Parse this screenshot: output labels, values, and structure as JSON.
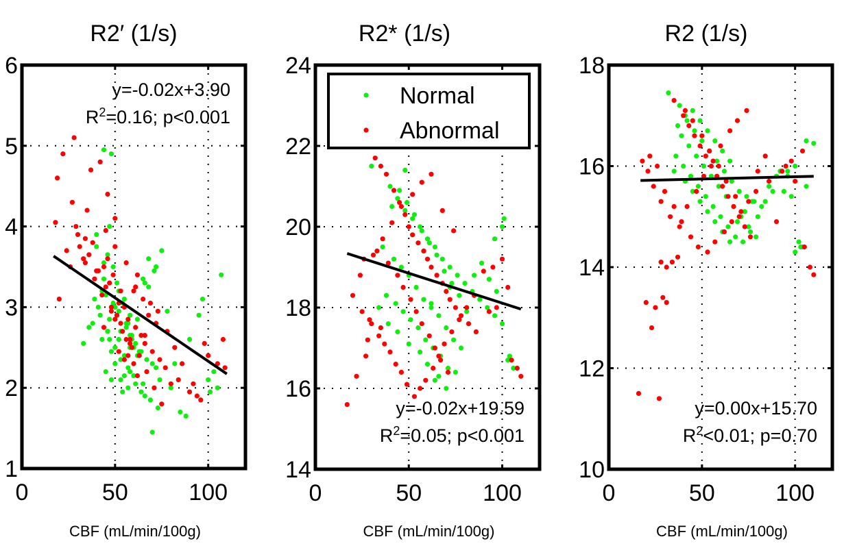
{
  "figure": {
    "colors": {
      "normal": "#10ee10",
      "abnormal": "#ff0000",
      "fit": "#000000",
      "axes": "#000000",
      "grid": "#000000"
    }
  },
  "chart_data": [
    {
      "type": "scatter",
      "title": "R2′ (1/s)",
      "xlabel": "CBF (mL/min/100g)",
      "ylabel": "",
      "xlim": [
        0,
        120
      ],
      "ylim": [
        1,
        6
      ],
      "xticks": [
        0,
        50,
        100
      ],
      "xtick_labels": [
        "0",
        "50",
        "100"
      ],
      "yticks": [
        1,
        2,
        3,
        4,
        5,
        6
      ],
      "ytick_labels": [
        "1",
        "2",
        "3",
        "4",
        "5",
        "6"
      ],
      "grid": true,
      "legend": null,
      "annotations": {
        "equation": "y=-0.02x+3.90",
        "r2_label": "R",
        "r2_sup": "2",
        "r2_rest": "=0.16; p<0.001",
        "placement": "top-right"
      },
      "fit": {
        "slope": -0.0157,
        "intercept": 3.9,
        "x_range": [
          17,
          110
        ]
      },
      "series": [
        {
          "name": "Normal",
          "x": [
            44,
            48,
            47,
            40,
            52,
            55,
            58,
            46,
            43,
            60,
            62,
            50,
            45,
            53,
            57,
            64,
            66,
            70,
            49,
            51,
            41,
            38,
            56,
            59,
            61,
            63,
            67,
            72,
            74,
            47,
            52,
            54,
            58,
            42,
            45,
            50,
            55,
            68,
            75,
            80,
            85,
            90,
            95,
            100,
            103,
            107,
            33,
            36,
            39,
            44,
            48,
            53,
            57,
            60,
            65,
            69,
            73,
            78,
            82,
            88,
            97,
            101,
            105,
            46,
            52,
            58,
            63,
            70,
            43,
            50,
            56,
            62,
            68,
            47,
            53,
            59,
            65,
            71,
            44,
            49,
            55,
            61,
            40,
            46,
            51,
            57,
            64,
            72,
            66,
            58,
            48,
            54
          ],
          "y": [
            4.95,
            4.9,
            4.0,
            3.9,
            3.2,
            3.1,
            2.9,
            2.7,
            2.6,
            2.5,
            2.4,
            2.3,
            2.2,
            2.1,
            2.0,
            1.95,
            1.9,
            1.45,
            3.5,
            3.3,
            3.0,
            2.8,
            2.75,
            2.6,
            2.55,
            2.45,
            2.35,
            2.25,
            2.1,
            2.85,
            2.95,
            3.05,
            2.65,
            2.9,
            3.15,
            2.5,
            2.4,
            3.6,
            3.7,
            2.0,
            1.7,
            2.6,
            2.9,
            2.1,
            2.2,
            3.4,
            2.55,
            2.75,
            3.1,
            3.35,
            2.45,
            2.35,
            2.25,
            2.15,
            2.05,
            1.85,
            1.75,
            2.95,
            2.3,
            1.65,
            3.1,
            1.95,
            2.0,
            2.7,
            2.6,
            2.5,
            2.4,
            2.3,
            3.2,
            3.0,
            2.8,
            2.85,
            3.25,
            2.6,
            2.7,
            2.65,
            3.35,
            3.45,
            3.55,
            3.05,
            2.15,
            2.05,
            3.75,
            3.65,
            2.9,
            2.8,
            2.45,
            3.5,
            3.3,
            2.2,
            2.1,
            1.95
          ]
        },
        {
          "name": "Abnormal",
          "x": [
            28,
            22,
            37,
            42,
            46,
            50,
            18,
            24,
            33,
            38,
            44,
            47,
            55,
            60,
            62,
            65,
            68,
            72,
            78,
            82,
            86,
            92,
            96,
            100,
            108,
            20,
            26,
            30,
            35,
            40,
            45,
            52,
            57,
            61,
            64,
            66,
            70,
            74,
            77,
            84,
            90,
            98,
            105,
            109,
            19,
            27,
            31,
            34,
            39,
            43,
            48,
            53,
            58,
            63,
            67,
            71,
            75,
            48,
            51,
            54,
            56,
            59,
            46,
            49,
            53,
            57,
            60,
            44,
            50,
            55,
            62,
            36,
            41,
            52,
            58,
            66,
            29,
            34,
            45,
            50,
            56,
            61,
            69,
            73,
            80,
            94
          ],
          "y": [
            5.1,
            4.9,
            4.7,
            4.8,
            4.4,
            4.1,
            4.05,
            3.7,
            3.6,
            3.8,
            3.5,
            3.3,
            3.0,
            3.2,
            3.4,
            3.1,
            2.9,
            2.8,
            2.7,
            2.5,
            2.3,
            2.05,
            1.85,
            2.4,
            2.6,
            3.1,
            3.5,
            3.9,
            4.2,
            3.45,
            3.25,
            3.05,
            2.85,
            2.75,
            2.65,
            2.55,
            2.45,
            2.35,
            2.25,
            2.1,
            1.95,
            2.55,
            2.3,
            2.25,
            4.6,
            4.3,
            3.75,
            3.55,
            3.35,
            3.15,
            2.95,
            2.8,
            2.6,
            2.4,
            2.2,
            2.0,
            1.8,
            3.0,
            2.9,
            2.7,
            2.6,
            2.5,
            3.6,
            3.4,
            3.2,
            2.4,
            2.3,
            2.75,
            2.85,
            2.35,
            2.15,
            3.65,
            3.45,
            2.45,
            2.55,
            2.65,
            4.0,
            3.85,
            3.95,
            3.75,
            3.55,
            3.25,
            3.05,
            2.95,
            2.05,
            1.9
          ]
        }
      ]
    },
    {
      "type": "scatter",
      "title": "R2* (1/s)",
      "xlabel": "CBF (mL/min/100g)",
      "ylabel": "",
      "xlim": [
        0,
        120
      ],
      "ylim": [
        14,
        24
      ],
      "xticks": [
        0,
        50,
        100
      ],
      "xtick_labels": [
        "0",
        "50",
        "100"
      ],
      "yticks": [
        14,
        16,
        18,
        20,
        22,
        24
      ],
      "ytick_labels": [
        "14",
        "16",
        "18",
        "20",
        "22",
        "24"
      ],
      "grid": true,
      "legend": {
        "placement": "top",
        "entries": [
          "Normal",
          "Abnormal"
        ]
      },
      "annotations": {
        "equation": "y=-0.02x+19.59",
        "r2_label": "R",
        "r2_sup": "2",
        "r2_rest": "=0.05; p<0.001",
        "placement": "bottom-right"
      },
      "fit": {
        "slope": -0.0148,
        "intercept": 19.59,
        "x_range": [
          17,
          110
        ]
      },
      "series": [
        {
          "name": "Normal",
          "x": [
            30,
            40,
            44,
            48,
            52,
            56,
            60,
            64,
            68,
            72,
            76,
            80,
            84,
            88,
            92,
            96,
            100,
            104,
            108,
            36,
            42,
            46,
            50,
            54,
            58,
            62,
            66,
            70,
            74,
            78,
            38,
            43,
            47,
            51,
            55,
            59,
            63,
            67,
            71,
            45,
            49,
            53,
            57,
            61,
            65,
            69,
            73,
            77,
            81,
            85,
            89,
            93,
            97,
            101,
            34,
            39,
            41,
            48,
            52,
            58,
            62,
            64,
            70,
            75,
            44,
            50,
            56,
            60,
            66,
            72,
            96,
            100,
            103,
            106
          ],
          "y": [
            21.5,
            21.0,
            20.7,
            20.4,
            20.2,
            20.0,
            19.7,
            19.5,
            19.2,
            19.0,
            18.8,
            18.6,
            18.4,
            18.2,
            18.0,
            17.8,
            17.6,
            16.8,
            16.5,
            19.5,
            19.2,
            19.0,
            18.8,
            18.5,
            18.2,
            18.0,
            17.8,
            17.5,
            17.2,
            17.0,
            18.3,
            18.1,
            17.9,
            17.7,
            17.5,
            17.2,
            17.0,
            16.8,
            16.5,
            20.9,
            20.6,
            20.3,
            19.9,
            19.6,
            19.3,
            18.9,
            18.6,
            18.3,
            17.9,
            18.8,
            19.1,
            18.7,
            18.4,
            20.2,
            18.0,
            17.6,
            20.5,
            21.4,
            19.8,
            19.4,
            18.1,
            16.2,
            16.0,
            16.4,
            17.4,
            17.1,
            16.9,
            16.6,
            16.3,
            18.5,
            19.7,
            20.0,
            16.7,
            16.5
          ]
        },
        {
          "name": "Abnormal",
          "x": [
            17,
            22,
            27,
            32,
            35,
            38,
            42,
            45,
            48,
            50,
            52,
            55,
            58,
            60,
            62,
            65,
            68,
            70,
            72,
            75,
            78,
            82,
            86,
            90,
            95,
            100,
            105,
            110,
            20,
            25,
            30,
            34,
            37,
            40,
            43,
            46,
            49,
            53,
            56,
            59,
            63,
            66,
            69,
            73,
            77,
            81,
            85,
            93,
            97,
            103,
            108,
            28,
            33,
            39,
            44,
            47,
            51,
            54,
            57,
            61,
            64,
            67,
            71,
            24,
            31,
            36,
            41,
            46,
            52,
            57,
            62,
            68,
            74,
            26,
            29,
            35
          ],
          "y": [
            15.6,
            16.3,
            16.8,
            21.7,
            21.5,
            21.3,
            20.9,
            20.6,
            20.3,
            20.0,
            19.8,
            19.6,
            19.4,
            19.2,
            19.0,
            18.8,
            18.6,
            18.4,
            18.2,
            18.0,
            17.8,
            17.6,
            17.4,
            18.9,
            19.0,
            19.2,
            16.7,
            16.3,
            18.3,
            17.9,
            17.6,
            17.3,
            17.1,
            16.9,
            16.6,
            16.4,
            16.1,
            15.8,
            16.0,
            16.2,
            16.5,
            16.8,
            17.1,
            17.4,
            17.7,
            18.0,
            18.3,
            17.9,
            18.0,
            18.5,
            16.5,
            17.2,
            19.4,
            19.1,
            18.8,
            18.5,
            18.2,
            17.9,
            17.6,
            17.3,
            17.0,
            16.7,
            16.4,
            18.8,
            19.3,
            19.7,
            20.1,
            20.5,
            20.8,
            21.1,
            21.3,
            20.4,
            19.9,
            19.2,
            17.7,
            17.5
          ]
        }
      ]
    },
    {
      "type": "scatter",
      "title": "R2 (1/s)",
      "xlabel": "CBF (mL/min/100g)",
      "ylabel": "",
      "xlim": [
        0,
        120
      ],
      "ylim": [
        10,
        18
      ],
      "xticks": [
        0,
        50,
        100
      ],
      "xtick_labels": [
        "0",
        "50",
        "100"
      ],
      "yticks": [
        10,
        12,
        14,
        16,
        18
      ],
      "ytick_labels": [
        "10",
        "12",
        "14",
        "16",
        "18"
      ],
      "grid": true,
      "legend": null,
      "annotations": {
        "equation": "y=0.00x+15.70",
        "r2_label": "R",
        "r2_sup": "2",
        "r2_rest": "<0.01; p=0.70",
        "placement": "bottom-right"
      },
      "fit": {
        "slope": 0.0009,
        "intercept": 15.7,
        "x_range": [
          17,
          110
        ]
      },
      "series": [
        {
          "name": "Normal",
          "x": [
            32,
            38,
            42,
            46,
            50,
            54,
            58,
            62,
            66,
            70,
            74,
            78,
            82,
            86,
            90,
            94,
            98,
            102,
            106,
            110,
            36,
            40,
            44,
            48,
            52,
            56,
            60,
            64,
            68,
            72,
            76,
            80,
            84,
            88,
            92,
            96,
            100,
            104,
            39,
            43,
            47,
            51,
            55,
            59,
            63,
            67,
            71,
            75,
            79,
            35,
            41,
            45,
            49,
            53,
            57,
            61,
            65,
            69,
            73,
            77,
            37,
            41,
            45,
            49,
            53,
            57,
            61,
            65,
            100,
            103,
            96,
            106
          ],
          "y": [
            17.45,
            17.2,
            16.9,
            16.7,
            16.5,
            16.3,
            16.1,
            15.9,
            15.7,
            15.5,
            15.4,
            15.3,
            15.2,
            15.6,
            15.8,
            15.5,
            15.4,
            14.5,
            16.5,
            16.45,
            16.2,
            16.0,
            15.8,
            15.6,
            15.4,
            15.2,
            15.0,
            14.8,
            14.6,
            14.5,
            14.7,
            15.0,
            15.3,
            15.5,
            15.9,
            15.8,
            16.0,
            14.4,
            16.6,
            16.4,
            16.2,
            16.0,
            15.8,
            15.6,
            15.4,
            15.2,
            15.0,
            14.8,
            14.6,
            15.9,
            15.7,
            15.5,
            15.3,
            15.1,
            14.9,
            14.7,
            14.5,
            14.9,
            15.1,
            15.3,
            16.8,
            17.0,
            17.1,
            16.9,
            16.7,
            16.5,
            16.3,
            16.1,
            14.3,
            14.4,
            15.9,
            15.6
          ]
        },
        {
          "name": "Abnormal",
          "x": [
            16,
            20,
            23,
            25,
            27,
            29,
            31,
            34,
            37,
            40,
            43,
            46,
            49,
            52,
            55,
            58,
            61,
            64,
            67,
            70,
            73,
            76,
            80,
            84,
            90,
            95,
            100,
            105,
            108,
            110,
            22,
            26,
            30,
            35,
            39,
            44,
            48,
            53,
            57,
            62,
            66,
            71,
            75,
            79,
            86,
            93,
            98,
            104,
            18,
            21,
            24,
            28,
            33,
            38,
            42,
            47,
            51,
            56,
            60,
            65,
            69,
            74,
            35,
            41,
            45,
            50,
            54,
            59,
            63,
            68,
            28,
            31
          ],
          "y": [
            11.5,
            13.3,
            12.8,
            13.2,
            11.4,
            13.4,
            13.3,
            14.1,
            14.2,
            17.0,
            16.8,
            16.6,
            16.4,
            16.2,
            16.0,
            15.8,
            15.6,
            15.4,
            15.2,
            15.0,
            14.8,
            14.6,
            15.9,
            16.2,
            14.9,
            16.0,
            15.7,
            14.4,
            14.0,
            13.85,
            16.2,
            16.0,
            15.5,
            15.2,
            14.9,
            14.6,
            14.4,
            14.3,
            14.5,
            14.7,
            14.9,
            15.1,
            15.3,
            15.5,
            15.7,
            15.9,
            16.1,
            16.3,
            16.1,
            15.9,
            15.6,
            15.3,
            15.0,
            14.8,
            15.2,
            15.5,
            15.8,
            16.1,
            16.4,
            16.7,
            16.9,
            17.1,
            17.3,
            17.1,
            16.9,
            16.6,
            16.3,
            16.0,
            15.7,
            15.4,
            14.1,
            14.0
          ]
        }
      ]
    }
  ]
}
